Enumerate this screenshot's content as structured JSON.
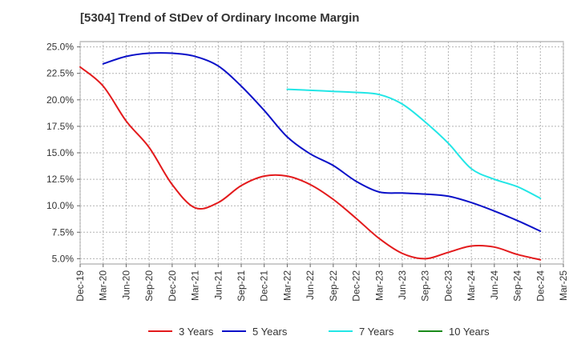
{
  "title": "[5304]  Trend of StDev of Ordinary Income Margin",
  "chart_data": {
    "type": "line",
    "title": "[5304]  Trend of StDev of Ordinary Income Margin",
    "xlabel": "",
    "ylabel": "",
    "x_ticks": [
      "Dec-19",
      "Mar-20",
      "Jun-20",
      "Sep-20",
      "Dec-20",
      "Mar-21",
      "Jun-21",
      "Sep-21",
      "Dec-21",
      "Mar-22",
      "Jun-22",
      "Sep-22",
      "Dec-22",
      "Mar-23",
      "Jun-23",
      "Sep-23",
      "Dec-23",
      "Mar-24",
      "Jun-24",
      "Sep-24",
      "Dec-24",
      "Mar-25"
    ],
    "y_ticks": [
      "5.0%",
      "7.5%",
      "10.0%",
      "12.5%",
      "15.0%",
      "17.5%",
      "20.0%",
      "22.5%",
      "25.0%"
    ],
    "ylim": [
      4.5,
      25.5
    ],
    "grid": true,
    "legend_position": "bottom",
    "series": [
      {
        "name": "3 Years",
        "color": "#e31a1c",
        "points": [
          [
            "Dec-19",
            23.1
          ],
          [
            "Mar-20",
            21.3
          ],
          [
            "Jun-20",
            18.0
          ],
          [
            "Sep-20",
            15.5
          ],
          [
            "Dec-20",
            12.0
          ],
          [
            "Mar-21",
            9.8
          ],
          [
            "Jun-21",
            10.3
          ],
          [
            "Sep-21",
            11.9
          ],
          [
            "Dec-21",
            12.8
          ],
          [
            "Mar-22",
            12.8
          ],
          [
            "Jun-22",
            12.0
          ],
          [
            "Sep-22",
            10.6
          ],
          [
            "Dec-22",
            8.8
          ],
          [
            "Mar-23",
            6.9
          ],
          [
            "Jun-23",
            5.5
          ],
          [
            "Sep-23",
            5.0
          ],
          [
            "Dec-23",
            5.6
          ],
          [
            "Mar-24",
            6.2
          ],
          [
            "Jun-24",
            6.1
          ],
          [
            "Sep-24",
            5.4
          ],
          [
            "Dec-24",
            4.9
          ]
        ]
      },
      {
        "name": "5 Years",
        "color": "#0a10c8",
        "points": [
          [
            "Mar-20",
            23.4
          ],
          [
            "Jun-20",
            24.1
          ],
          [
            "Sep-20",
            24.4
          ],
          [
            "Dec-20",
            24.4
          ],
          [
            "Mar-21",
            24.1
          ],
          [
            "Jun-21",
            23.2
          ],
          [
            "Sep-21",
            21.3
          ],
          [
            "Dec-21",
            19.0
          ],
          [
            "Mar-22",
            16.5
          ],
          [
            "Jun-22",
            14.9
          ],
          [
            "Sep-22",
            13.8
          ],
          [
            "Dec-22",
            12.3
          ],
          [
            "Mar-23",
            11.3
          ],
          [
            "Jun-23",
            11.2
          ],
          [
            "Sep-23",
            11.1
          ],
          [
            "Dec-23",
            10.9
          ],
          [
            "Mar-24",
            10.3
          ],
          [
            "Jun-24",
            9.5
          ],
          [
            "Sep-24",
            8.6
          ],
          [
            "Dec-24",
            7.6
          ]
        ]
      },
      {
        "name": "7 Years",
        "color": "#22e6e6",
        "points": [
          [
            "Mar-22",
            21.0
          ],
          [
            "Jun-22",
            20.9
          ],
          [
            "Sep-22",
            20.8
          ],
          [
            "Dec-22",
            20.7
          ],
          [
            "Mar-23",
            20.5
          ],
          [
            "Jun-23",
            19.6
          ],
          [
            "Sep-23",
            17.9
          ],
          [
            "Dec-23",
            15.9
          ],
          [
            "Mar-24",
            13.5
          ],
          [
            "Jun-24",
            12.5
          ],
          [
            "Sep-24",
            11.8
          ],
          [
            "Dec-24",
            10.7
          ]
        ]
      },
      {
        "name": "10 Years",
        "color": "#1a8a1a",
        "points": []
      }
    ]
  }
}
